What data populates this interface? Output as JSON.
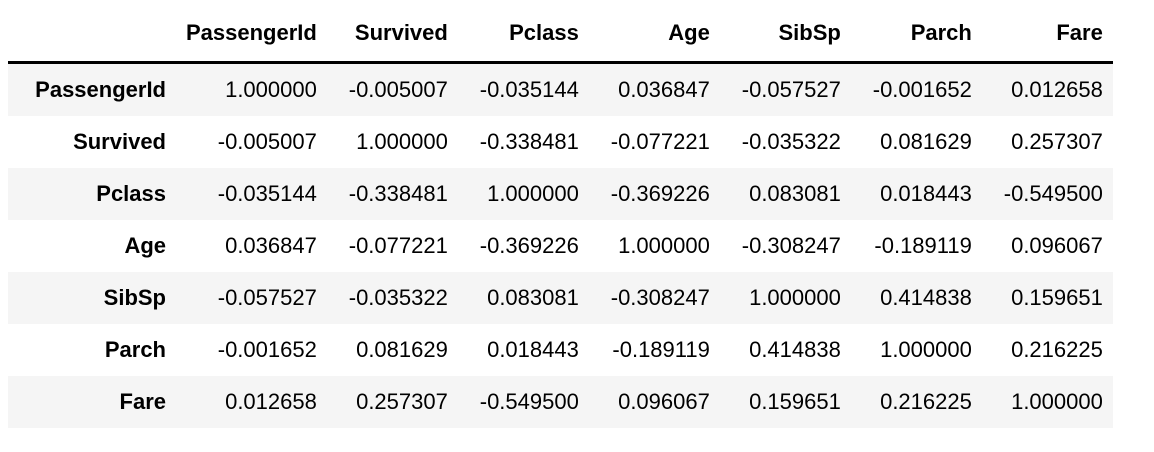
{
  "table": {
    "corner_label": "",
    "columns": [
      "PassengerId",
      "Survived",
      "Pclass",
      "Age",
      "SibSp",
      "Parch",
      "Fare"
    ],
    "rows": [
      {
        "label": "PassengerId",
        "values": [
          "1.000000",
          "-0.005007",
          "-0.035144",
          "0.036847",
          "-0.057527",
          "-0.001652",
          "0.012658"
        ]
      },
      {
        "label": "Survived",
        "values": [
          "-0.005007",
          "1.000000",
          "-0.338481",
          "-0.077221",
          "-0.035322",
          "0.081629",
          "0.257307"
        ]
      },
      {
        "label": "Pclass",
        "values": [
          "-0.035144",
          "-0.338481",
          "1.000000",
          "-0.369226",
          "0.083081",
          "0.018443",
          "-0.549500"
        ]
      },
      {
        "label": "Age",
        "values": [
          "0.036847",
          "-0.077221",
          "-0.369226",
          "1.000000",
          "-0.308247",
          "-0.189119",
          "0.096067"
        ]
      },
      {
        "label": "SibSp",
        "values": [
          "-0.057527",
          "-0.035322",
          "0.083081",
          "-0.308247",
          "1.000000",
          "0.414838",
          "0.159651"
        ]
      },
      {
        "label": "Parch",
        "values": [
          "-0.001652",
          "0.081629",
          "0.018443",
          "-0.189119",
          "0.414838",
          "1.000000",
          "0.216225"
        ]
      },
      {
        "label": "Fare",
        "values": [
          "0.012658",
          "0.257307",
          "-0.549500",
          "0.096067",
          "0.159651",
          "0.216225",
          "1.000000"
        ]
      }
    ],
    "stripe_color": "#f5f5f5",
    "header_border_color": "#000000",
    "text_color": "#000000"
  },
  "chart_data": {
    "type": "table",
    "columns": [
      "PassengerId",
      "Survived",
      "Pclass",
      "Age",
      "SibSp",
      "Parch",
      "Fare"
    ],
    "index": [
      "PassengerId",
      "Survived",
      "Pclass",
      "Age",
      "SibSp",
      "Parch",
      "Fare"
    ],
    "values": [
      [
        1.0,
        -0.005007,
        -0.035144,
        0.036847,
        -0.057527,
        -0.001652,
        0.012658
      ],
      [
        -0.005007,
        1.0,
        -0.338481,
        -0.077221,
        -0.035322,
        0.081629,
        0.257307
      ],
      [
        -0.035144,
        -0.338481,
        1.0,
        -0.369226,
        0.083081,
        0.018443,
        -0.5495
      ],
      [
        0.036847,
        -0.077221,
        -0.369226,
        1.0,
        -0.308247,
        -0.189119,
        0.096067
      ],
      [
        -0.057527,
        -0.035322,
        0.083081,
        -0.308247,
        1.0,
        0.414838,
        0.159651
      ],
      [
        -0.001652,
        0.081629,
        0.018443,
        -0.189119,
        0.414838,
        1.0,
        0.216225
      ],
      [
        0.012658,
        0.257307,
        -0.5495,
        0.096067,
        0.159651,
        0.216225,
        1.0
      ]
    ]
  }
}
